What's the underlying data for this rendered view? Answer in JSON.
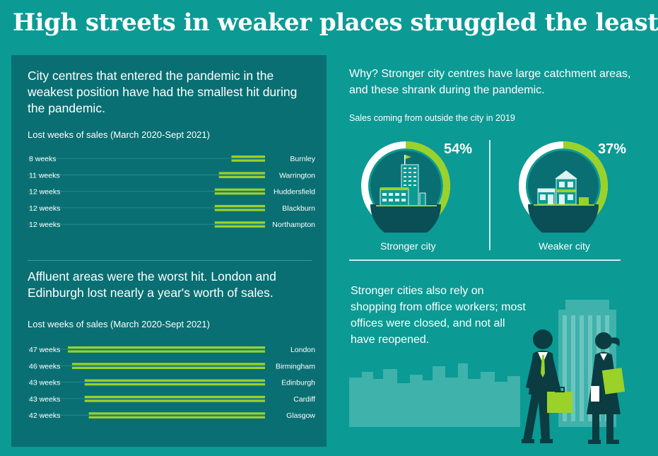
{
  "title": "High streets in weaker places struggled the least",
  "left": {
    "lede1": "City centres that entered the pandemic in the weakest position have had the smallest hit during the pandemic.",
    "lede2": "Affluent areas were the worst hit. London and Edinburgh lost nearly a year's worth of sales.",
    "sub1": "Lost weeks of sales (March 2020-Sept 2021)",
    "sub2": "Lost weeks of sales (March 2020-Sept 2021)"
  },
  "right": {
    "why": "Why? Stronger city centres have large catchment areas, and these shrank during the pandemic.",
    "sales_label": "Sales coming from outside the city in 2019",
    "stronger": {
      "label": "Stronger city",
      "pct": "54%",
      "value": 54
    },
    "weaker": {
      "label": "Weaker city",
      "pct": "37%",
      "value": 37
    },
    "office_text": "Stronger cities also rely on shopping from office workers; most offices were closed, and not all have reopened."
  },
  "colors": {
    "background": "#0b9a94",
    "panel": "#0a6f72",
    "accent": "#9ad22a",
    "donut_track": "#ffffff",
    "building_dark": "#0a4f55"
  },
  "icons": {
    "stronger": "office-tower-icon",
    "weaker": "shopfront-icon",
    "scene": "office-workers-illustration"
  },
  "chart_data": [
    {
      "type": "bar",
      "categories": [
        "Burnley",
        "Warrington",
        "Huddersfield",
        "Blackburn",
        "Northampton"
      ],
      "values": [
        8,
        11,
        12,
        12,
        12
      ],
      "value_labels": [
        "8 weeks",
        "11 weeks",
        "12 weeks",
        "12 weeks",
        "12 weeks"
      ],
      "title": "Lost weeks of sales (March 2020-Sept 2021)",
      "xlim": [
        0,
        48
      ]
    },
    {
      "type": "bar",
      "categories": [
        "London",
        "Birmingham",
        "Edinburgh",
        "Cardiff",
        "Glasgow"
      ],
      "values": [
        47,
        46,
        43,
        43,
        42
      ],
      "value_labels": [
        "47 weeks",
        "46 weeks",
        "43 weeks",
        "43 weeks",
        "42 weeks"
      ],
      "title": "Lost weeks of sales (March 2020-Sept 2021)",
      "xlim": [
        0,
        48
      ]
    },
    {
      "type": "pie",
      "categories": [
        "Stronger city",
        "Weaker city"
      ],
      "values": [
        54,
        37
      ],
      "value_labels": [
        "54%",
        "37%"
      ],
      "title": "Sales coming from outside the city in 2019"
    }
  ]
}
